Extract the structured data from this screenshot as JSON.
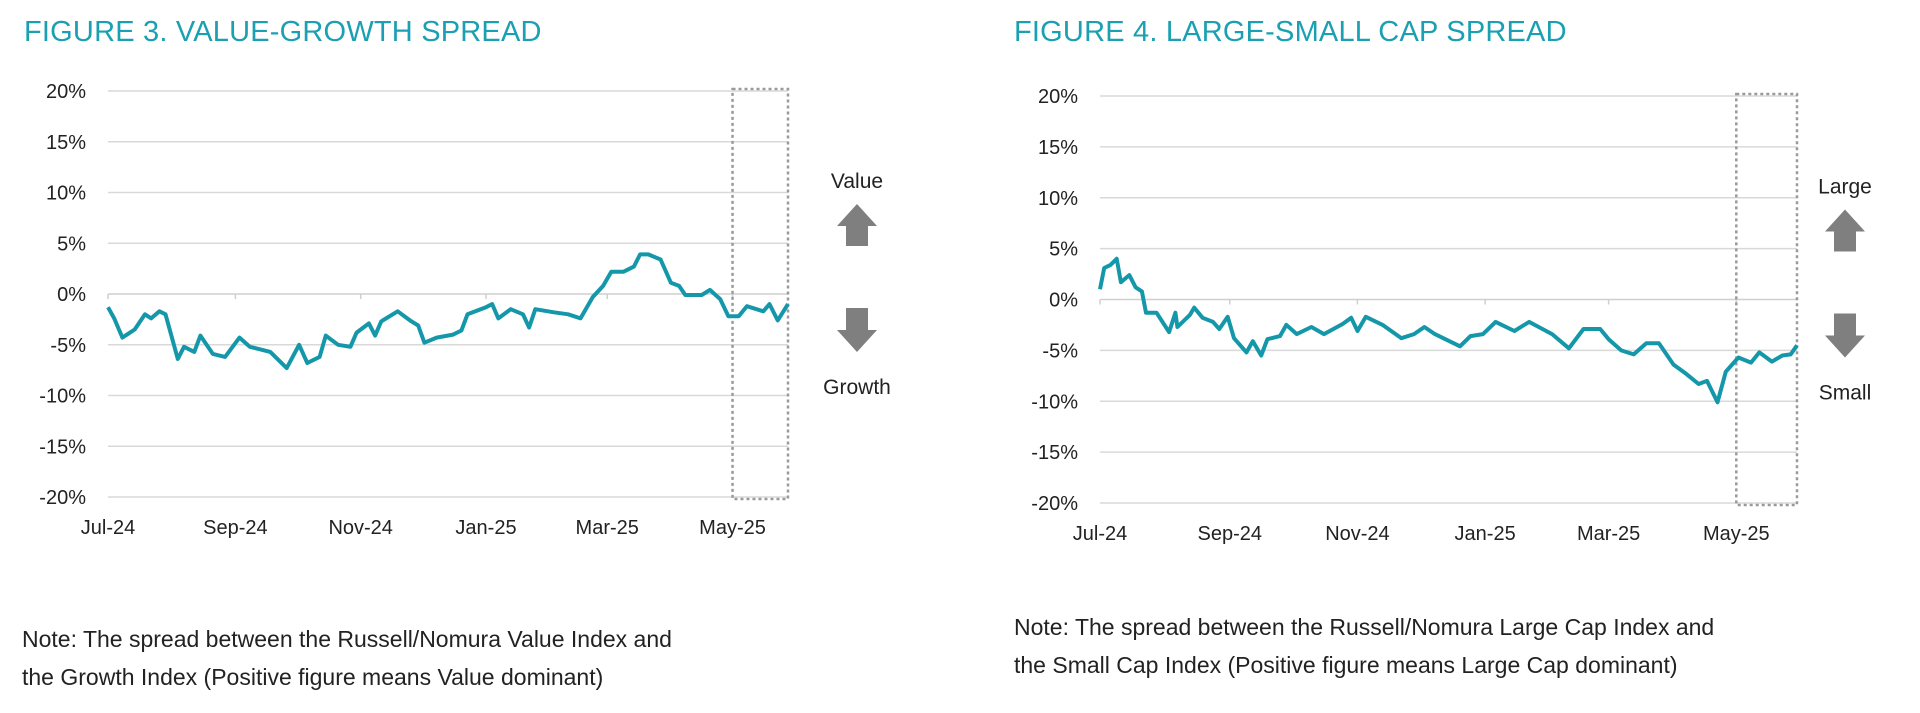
{
  "colors": {
    "title": "#1aa0b2",
    "line": "#1597aa",
    "grid": "#d9d9d9",
    "arrow": "#7f7f7f",
    "highlight_box": "#9a9a9a"
  },
  "chart_data": [
    {
      "type": "line",
      "title": "FIGURE 3. VALUE-GROWTH SPREAD",
      "note": [
        "Note: The spread between the Russell/Nomura Value Index and",
        "the Growth Index (Positive figure means Value dominant)"
      ],
      "ylim": [
        -20,
        20
      ],
      "yticks": [
        20,
        15,
        10,
        5,
        0,
        -5,
        -10,
        -15,
        -20
      ],
      "ytick_labels": [
        "20%",
        "15%",
        "10%",
        "5%",
        "0%",
        "-5%",
        "-10%",
        "-15%",
        "-20%"
      ],
      "xlim": [
        "2024-07-01",
        "2025-05-28"
      ],
      "xticks": [
        "2024-07-01",
        "2024-09-01",
        "2024-11-01",
        "2025-01-01",
        "2025-03-01",
        "2025-05-01"
      ],
      "xtick_labels": [
        "Jul-24",
        "Sep-24",
        "Nov-24",
        "Jan-25",
        "Mar-25",
        "May-25"
      ],
      "grid": true,
      "highlight_range": [
        "2025-05-01",
        "2025-05-28"
      ],
      "direction_labels": {
        "up": "Value",
        "down": "Growth"
      },
      "series": [
        {
          "x": [
            "2024-07-01",
            "2024-07-04",
            "2024-07-08",
            "2024-07-14",
            "2024-07-19",
            "2024-07-22",
            "2024-07-26",
            "2024-07-29",
            "2024-08-04",
            "2024-08-07",
            "2024-08-12",
            "2024-08-15",
            "2024-08-21",
            "2024-08-27",
            "2024-09-03",
            "2024-09-08",
            "2024-09-18",
            "2024-09-26",
            "2024-10-02",
            "2024-10-06",
            "2024-10-12",
            "2024-10-15",
            "2024-10-21",
            "2024-10-27",
            "2024-10-30",
            "2024-11-05",
            "2024-11-08",
            "2024-11-11",
            "2024-11-19",
            "2024-11-25",
            "2024-11-29",
            "2024-12-02",
            "2024-12-08",
            "2024-12-16",
            "2024-12-20",
            "2024-12-23",
            "2025-01-01",
            "2025-01-04",
            "2025-01-07",
            "2025-01-13",
            "2025-01-19",
            "2025-01-22",
            "2025-01-25",
            "2025-02-03",
            "2025-02-10",
            "2025-02-16",
            "2025-02-22",
            "2025-02-27",
            "2025-03-03",
            "2025-03-09",
            "2025-03-14",
            "2025-03-17",
            "2025-03-21",
            "2025-03-27",
            "2025-04-01",
            "2025-04-05",
            "2025-04-08",
            "2025-04-16",
            "2025-04-20",
            "2025-04-25",
            "2025-04-29",
            "2025-05-04",
            "2025-05-08",
            "2025-05-16",
            "2025-05-19",
            "2025-05-23",
            "2025-05-28"
          ],
          "y": [
            -1.3,
            -2.4,
            -4.3,
            -3.5,
            -2.0,
            -2.4,
            -1.7,
            -2.0,
            -6.4,
            -5.2,
            -5.7,
            -4.1,
            -5.9,
            -6.2,
            -4.3,
            -5.2,
            -5.7,
            -7.3,
            -5.0,
            -6.8,
            -6.2,
            -4.1,
            -5.0,
            -5.2,
            -3.8,
            -2.9,
            -4.1,
            -2.7,
            -1.7,
            -2.6,
            -3.1,
            -4.8,
            -4.3,
            -4.0,
            -3.6,
            -2.0,
            -1.3,
            -1.0,
            -2.4,
            -1.5,
            -2.0,
            -3.3,
            -1.5,
            -1.8,
            -2.0,
            -2.4,
            -0.3,
            0.8,
            2.2,
            2.2,
            2.7,
            3.9,
            3.9,
            3.4,
            1.1,
            0.8,
            -0.1,
            -0.1,
            0.4,
            -0.5,
            -2.2,
            -2.2,
            -1.2,
            -1.7,
            -1.0,
            -2.6,
            -1.0
          ]
        }
      ]
    },
    {
      "type": "line",
      "title": "FIGURE 4. LARGE-SMALL CAP SPREAD",
      "note": [
        "Note: The spread between the Russell/Nomura Large Cap Index and",
        "the Small Cap Index (Positive figure means Large Cap dominant)"
      ],
      "ylim": [
        -20,
        20
      ],
      "yticks": [
        20,
        15,
        10,
        5,
        0,
        -5,
        -10,
        -15,
        -20
      ],
      "ytick_labels": [
        "20%",
        "15%",
        "10%",
        "5%",
        "0%",
        "-5%",
        "-10%",
        "-15%",
        "-20%"
      ],
      "xlim": [
        "2024-07-01",
        "2025-05-30"
      ],
      "xticks": [
        "2024-07-01",
        "2024-09-01",
        "2024-11-01",
        "2025-01-01",
        "2025-03-01",
        "2025-05-01"
      ],
      "xtick_labels": [
        "Jul-24",
        "Sep-24",
        "Nov-24",
        "Jan-25",
        "Mar-25",
        "May-25"
      ],
      "grid": true,
      "highlight_range": [
        "2025-05-01",
        "2025-05-30"
      ],
      "direction_labels": {
        "up": "Large",
        "down": "Small"
      },
      "series": [
        {
          "x": [
            "2024-07-01",
            "2024-07-03",
            "2024-07-06",
            "2024-07-09",
            "2024-07-11",
            "2024-07-15",
            "2024-07-18",
            "2024-07-21",
            "2024-07-23",
            "2024-07-28",
            "2024-08-03",
            "2024-08-06",
            "2024-08-07",
            "2024-08-13",
            "2024-08-15",
            "2024-08-19",
            "2024-08-24",
            "2024-08-27",
            "2024-08-31",
            "2024-09-03",
            "2024-09-09",
            "2024-09-12",
            "2024-09-16",
            "2024-09-19",
            "2024-09-25",
            "2024-09-28",
            "2024-10-03",
            "2024-10-10",
            "2024-10-16",
            "2024-10-25",
            "2024-10-29",
            "2024-11-01",
            "2024-11-05",
            "2024-11-13",
            "2024-11-22",
            "2024-11-28",
            "2024-12-03",
            "2024-12-08",
            "2024-12-12",
            "2024-12-20",
            "2024-12-25",
            "2024-12-31",
            "2025-01-06",
            "2025-01-15",
            "2025-01-22",
            "2025-02-02",
            "2025-02-10",
            "2025-02-17",
            "2025-02-25",
            "2025-03-01",
            "2025-03-07",
            "2025-03-13",
            "2025-03-19",
            "2025-03-25",
            "2025-04-01",
            "2025-04-07",
            "2025-04-13",
            "2025-04-17",
            "2025-04-22",
            "2025-04-26",
            "2025-05-02",
            "2025-05-08",
            "2025-05-12",
            "2025-05-18",
            "2025-05-23",
            "2025-05-27",
            "2025-05-30"
          ],
          "y": [
            1.0,
            3.1,
            3.4,
            4.0,
            1.7,
            2.4,
            1.2,
            0.8,
            -1.3,
            -1.3,
            -3.2,
            -1.3,
            -2.7,
            -1.5,
            -0.8,
            -1.8,
            -2.2,
            -2.9,
            -1.7,
            -3.8,
            -5.2,
            -4.1,
            -5.5,
            -3.9,
            -3.6,
            -2.5,
            -3.4,
            -2.7,
            -3.4,
            -2.4,
            -1.8,
            -3.1,
            -1.7,
            -2.5,
            -3.8,
            -3.4,
            -2.7,
            -3.4,
            -3.8,
            -4.6,
            -3.6,
            -3.4,
            -2.2,
            -3.1,
            -2.2,
            -3.4,
            -4.8,
            -2.9,
            -2.9,
            -3.9,
            -5.0,
            -5.4,
            -4.3,
            -4.3,
            -6.4,
            -7.3,
            -8.3,
            -8.0,
            -10.1,
            -7.1,
            -5.7,
            -6.2,
            -5.2,
            -6.1,
            -5.5,
            -5.4,
            -4.5
          ]
        }
      ]
    }
  ]
}
